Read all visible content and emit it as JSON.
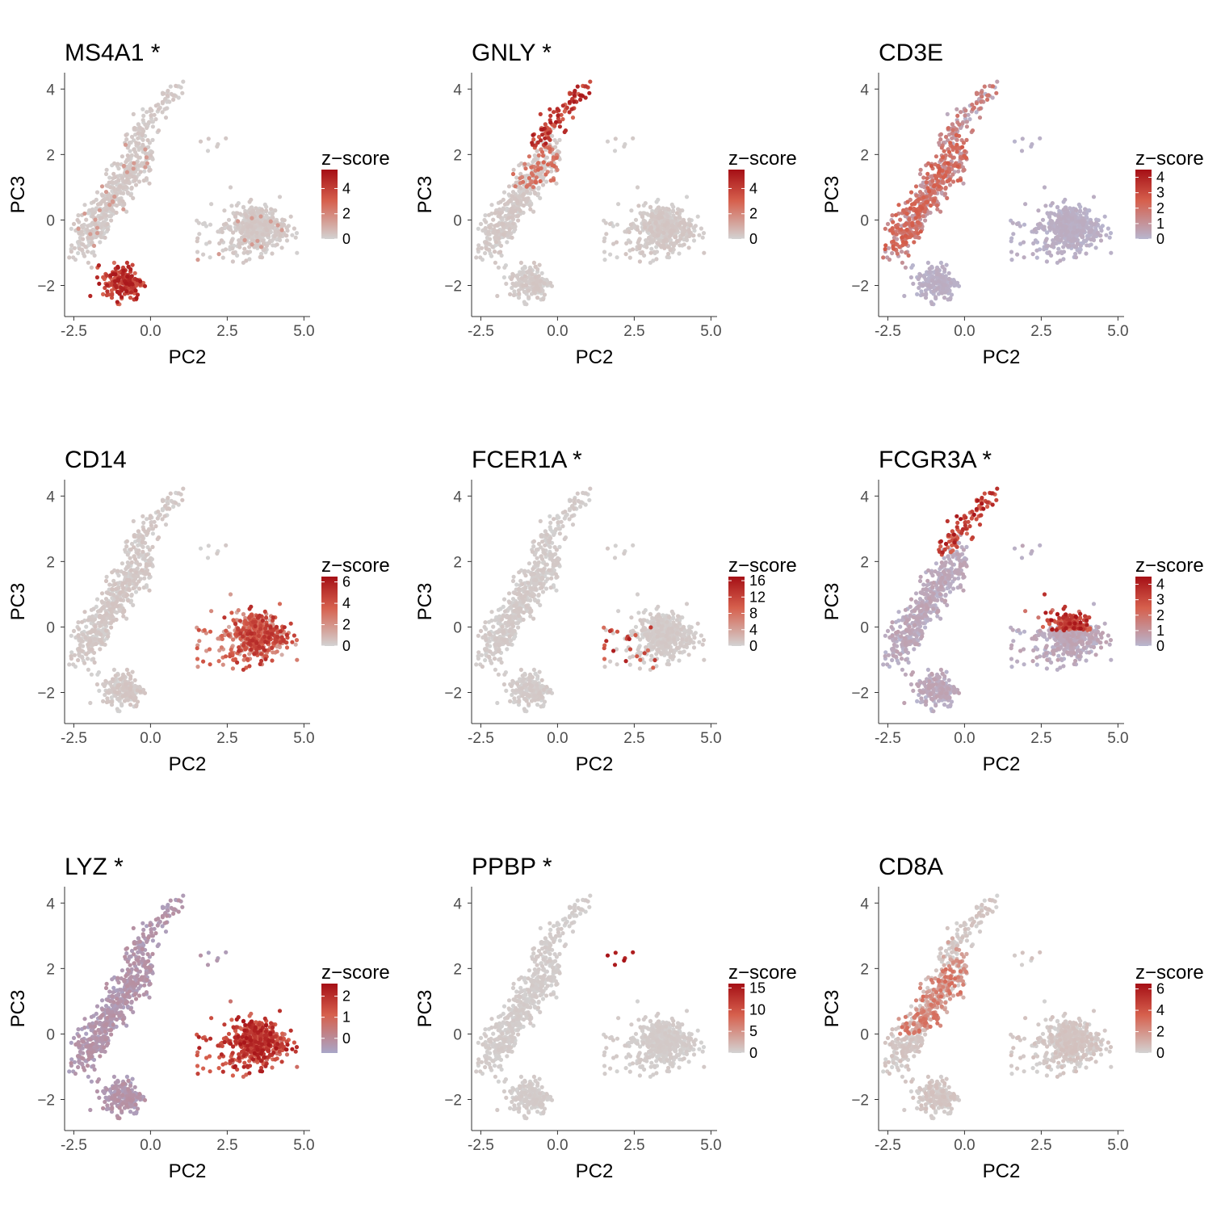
{
  "chart_data": {
    "type": "scatter",
    "layout": "3x3 grid of small multiples",
    "shared": {
      "xlabel": "PC2",
      "ylabel": "PC3",
      "xlim": [
        -2.8,
        5.2
      ],
      "ylim": [
        -2.95,
        4.5
      ],
      "xticks": [
        -2.5,
        0.0,
        2.5,
        5.0
      ],
      "xtick_labels": [
        "-2.5",
        "0.0",
        "2.5",
        "5.0"
      ],
      "yticks": [
        -2,
        0,
        2,
        4
      ],
      "ytick_labels": [
        "−2",
        "0",
        "2",
        "4"
      ],
      "legend_title": "z−score",
      "legend_placement": "right",
      "grid": false,
      "colors": {
        "low_grey": "#d3d3d3",
        "low_purple": "#a9a6c8",
        "high_red": "#a50f15",
        "mid_red": "#d6604d"
      },
      "clusters": [
        {
          "name": "elongated cluster",
          "center": [
            -1.1,
            0.9
          ],
          "points": 460
        },
        {
          "name": "upper tail",
          "center": [
            -0.05,
            3.2
          ],
          "points": 90
        },
        {
          "name": "lower cluster",
          "center": [
            -0.9,
            -1.9
          ],
          "points": 190
        },
        {
          "name": "right cluster",
          "center": [
            3.5,
            -0.25
          ],
          "points": 420
        },
        {
          "name": "scattered left of right cluster",
          "center": [
            2.4,
            -0.6
          ],
          "points": 45
        },
        {
          "name": "small top group",
          "center": [
            2.1,
            2.4
          ],
          "points": 6
        }
      ]
    },
    "panels": [
      {
        "title": "MS4A1 *",
        "legend_ticks": [
          "4",
          "2",
          "0"
        ],
        "legend_domain": [
          0,
          5.5
        ],
        "low_color": "#d3d3d3",
        "high_cluster": "lower cluster",
        "notes": "lower cluster red"
      },
      {
        "title": "GNLY *",
        "legend_ticks": [
          "4",
          "2",
          "0"
        ],
        "legend_domain": [
          0,
          5.5
        ],
        "low_color": "#d3d3d3",
        "high_cluster": "upper tail",
        "notes": "upper tail red"
      },
      {
        "title": "CD3E",
        "legend_ticks": [
          "4",
          "3",
          "2",
          "1",
          "0"
        ],
        "legend_domain": [
          0,
          4.5
        ],
        "low_color": "#b8b6cf",
        "high_cluster": "elongated cluster",
        "notes": "elongated cluster pinkish"
      },
      {
        "title": "CD14",
        "legend_ticks": [
          "6",
          "4",
          "2",
          "0"
        ],
        "legend_domain": [
          0,
          6.5
        ],
        "low_color": "#d3d3d3",
        "high_cluster": "right cluster",
        "notes": "right cluster red"
      },
      {
        "title": "FCER1A *",
        "legend_ticks": [
          "16",
          "12",
          "8",
          "4",
          "0"
        ],
        "legend_domain": [
          0,
          17
        ],
        "low_color": "#d3d3d3",
        "high_cluster": "scattered left of right cluster",
        "notes": "few points near (2.5,-1) red"
      },
      {
        "title": "FCGR3A *",
        "legend_ticks": [
          "4",
          "3",
          "2",
          "1",
          "0"
        ],
        "legend_domain": [
          0,
          4.5
        ],
        "low_color": "#b8b6cf",
        "high_cluster": "upper tail + right cluster top",
        "notes": "upper tail and top of right cluster red"
      },
      {
        "title": "LYZ *",
        "legend_ticks": [
          "2",
          "1",
          "0"
        ],
        "legend_domain": [
          -0.7,
          2.6
        ],
        "low_color": "#a9a6c8",
        "high_cluster": "right cluster",
        "notes": "right cluster red, others purple"
      },
      {
        "title": "PPBP *",
        "legend_ticks": [
          "15",
          "10",
          "5",
          "0"
        ],
        "legend_domain": [
          0,
          16
        ],
        "low_color": "#d3d3d3",
        "high_cluster": "small top group",
        "notes": "small top group red"
      },
      {
        "title": "CD8A",
        "legend_ticks": [
          "6",
          "4",
          "2",
          "0"
        ],
        "legend_domain": [
          0,
          6.5
        ],
        "low_color": "#d3d3d3",
        "high_cluster": "elongated cluster (upper part)",
        "notes": "upper elongated cluster pinkish"
      }
    ]
  }
}
